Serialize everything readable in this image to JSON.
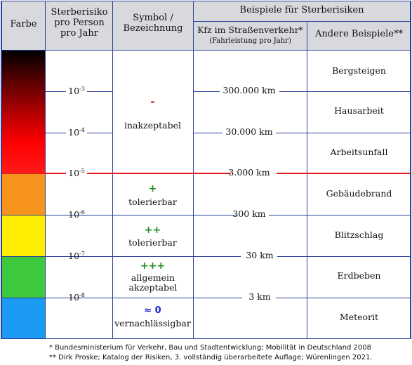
{
  "headers": {
    "farbe": "Farbe",
    "sterberisiko": "Sterberisiko pro Person pro Jahr",
    "symbol": "Symbol / Bezeichnung",
    "beispiele": "Beispiele für Sterberisiken",
    "kfz": "Kfz im Straßenverkehr*",
    "kfz_sub": "(Fahrleistung pro Jahr)",
    "andere": "Andere Beispiele**"
  },
  "risk_labels": [
    {
      "base": "10",
      "exp": "-3"
    },
    {
      "base": "10",
      "exp": "-4"
    },
    {
      "base": "10",
      "exp": "-5"
    },
    {
      "base": "10",
      "exp": "-6"
    },
    {
      "base": "10",
      "exp": "-7"
    },
    {
      "base": "10",
      "exp": "-8"
    }
  ],
  "kfz_values": [
    "300.000 km",
    "30.000 km",
    "3.000 km",
    "300 km",
    "30 km",
    "3 km"
  ],
  "symbols": [
    {
      "symbol": "-",
      "label": "inakzeptabel",
      "color": "#d42020"
    },
    {
      "symbol": "+",
      "label": "tolerierbar",
      "color": "#1e8c1e"
    },
    {
      "symbol": "++",
      "label": "tolerierbar",
      "color": "#1e8c1e"
    },
    {
      "symbol": "+++",
      "label": "allgemein akzeptabel",
      "color": "#1e8c1e"
    },
    {
      "symbol": "≈ 0",
      "label": "vernachlässigbar",
      "color": "#1a28c8"
    }
  ],
  "examples": [
    "Bergsteigen",
    "Hausarbeit",
    "Arbeitsunfall",
    "Gebäudebrand",
    "Blitzschlag",
    "Erdbeben",
    "Meteorit"
  ],
  "colors": {
    "band_orange": "#f7941d",
    "band_yellow": "#ffee00",
    "band_green": "#3ec83e",
    "band_blue": "#1a9af0",
    "threshold_line": "#e01e1e",
    "grid_line": "#2b3f9a",
    "header_bg": "#d7d9dc"
  },
  "footnotes": [
    "*  Bundesministerium für Verkehr, Bau und Stadtentwicklung; Mobilität in Deutschland 2008",
    "** Dirk Proske; Katalog der Risiken, 3. vollständig überarbeitete Auflage; Würenlingen 2021."
  ]
}
